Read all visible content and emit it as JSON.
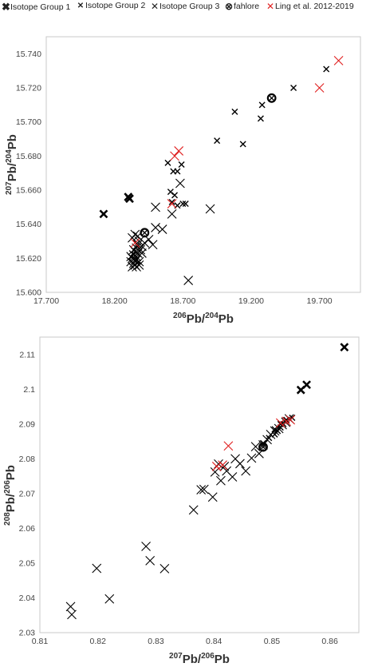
{
  "legend": [
    {
      "label": "Isotope Group 1",
      "marker": "x-bold",
      "color": "#000000"
    },
    {
      "label": "Isotope Group 2",
      "marker": "x-small",
      "color": "#000000"
    },
    {
      "label": "Isotope Group 3",
      "marker": "x-large",
      "color": "#000000"
    },
    {
      "label": "fahlore",
      "marker": "circle-x",
      "color": "#000000"
    },
    {
      "label": "Ling et al. 2012-2019",
      "marker": "x-large",
      "color": "#e02020"
    }
  ],
  "chart_data": [
    {
      "type": "scatter",
      "xlabel": {
        "sup": "206",
        "base": "Pb/",
        "sup2": "204",
        "base2": "Pb"
      },
      "ylabel": {
        "sup": "207",
        "base": "Pb/",
        "sup2": "204",
        "base2": "Pb"
      },
      "xlim": [
        17.7,
        20.0
      ],
      "ylim": [
        15.6,
        15.75
      ],
      "xticks": [
        "17.700",
        "18.200",
        "18.700",
        "19.200",
        "19.700"
      ],
      "xtick_values": [
        17.7,
        18.2,
        18.7,
        19.2,
        19.7
      ],
      "yticks": [
        "15.600",
        "15.620",
        "15.640",
        "15.660",
        "15.680",
        "15.700",
        "15.720",
        "15.740"
      ],
      "ytick_values": [
        15.6,
        15.62,
        15.64,
        15.66,
        15.68,
        15.7,
        15.72,
        15.74
      ],
      "grid": false,
      "series": [
        {
          "name": "Isotope Group 1",
          "marker": "x-bold",
          "color": "#000000",
          "x": [
            18.12,
            18.3,
            18.31
          ],
          "y": [
            15.646,
            15.656,
            15.655
          ]
        },
        {
          "name": "Isotope Group 2",
          "marker": "x-small",
          "color": "#000000",
          "x": [
            18.59,
            18.61,
            18.63,
            18.66,
            18.69,
            18.7,
            18.62,
            18.64,
            18.66,
            18.72,
            18.95,
            19.08,
            19.14,
            19.27,
            19.28,
            19.51,
            19.75
          ],
          "y": [
            15.676,
            15.659,
            15.671,
            15.671,
            15.675,
            15.652,
            15.653,
            15.657,
            15.651,
            15.652,
            15.689,
            15.706,
            15.687,
            15.702,
            15.71,
            15.72,
            15.731
          ]
        },
        {
          "name": "Isotope Group 3",
          "marker": "x-large",
          "color": "#000000",
          "x": [
            18.32,
            18.33,
            18.34,
            18.35,
            18.36,
            18.37,
            18.38,
            18.33,
            18.34,
            18.35,
            18.36,
            18.37,
            18.39,
            18.4,
            18.42,
            18.45,
            18.48,
            18.5,
            18.55,
            18.33,
            18.35,
            18.37,
            18.4,
            18.35,
            18.36,
            18.38,
            18.32,
            18.34,
            18.36,
            18.38,
            18.5,
            18.62,
            18.68,
            18.74,
            18.9
          ],
          "y": [
            15.618,
            15.62,
            15.622,
            15.624,
            15.626,
            15.628,
            15.63,
            15.615,
            15.617,
            15.619,
            15.621,
            15.623,
            15.625,
            15.627,
            15.629,
            15.631,
            15.628,
            15.638,
            15.637,
            15.632,
            15.634,
            15.633,
            15.623,
            15.616,
            15.615,
            15.618,
            15.621,
            15.625,
            15.619,
            15.616,
            15.65,
            15.646,
            15.664,
            15.607,
            15.649
          ]
        },
        {
          "name": "fahlore",
          "marker": "circle-x",
          "color": "#000000",
          "x": [
            18.42,
            19.35
          ],
          "y": [
            15.635,
            15.714
          ]
        },
        {
          "name": "Ling et al. 2012-2019",
          "marker": "x-large",
          "color": "#e02020",
          "x": [
            18.35,
            18.62,
            18.64,
            18.67,
            19.7,
            19.84
          ],
          "y": [
            15.629,
            15.652,
            15.68,
            15.683,
            15.72,
            15.736
          ]
        }
      ]
    },
    {
      "type": "scatter",
      "xlabel": {
        "sup": "207",
        "base": "Pb/",
        "sup2": "206",
        "base2": "Pb"
      },
      "ylabel": {
        "sup": "208",
        "base": "Pb/",
        "sup2": "206",
        "base2": "Pb"
      },
      "xlim": [
        0.81,
        0.865
      ],
      "ylim": [
        2.03,
        2.115
      ],
      "xticks": [
        "0.81",
        "0.82",
        "0.83",
        "0.84",
        "0.85",
        "0.86"
      ],
      "xtick_values": [
        0.81,
        0.82,
        0.83,
        0.84,
        0.85,
        0.86
      ],
      "yticks": [
        "2.03",
        "2.04",
        "2.05",
        "2.06",
        "2.07",
        "2.08",
        "2.09",
        "2.1",
        "2.11"
      ],
      "ytick_values": [
        2.03,
        2.04,
        2.05,
        2.06,
        2.07,
        2.08,
        2.09,
        2.1,
        2.11
      ],
      "grid": false,
      "series": [
        {
          "name": "Isotope Group 1",
          "marker": "x-bold",
          "color": "#000000",
          "x": [
            0.855,
            0.856,
            0.8625
          ],
          "y": [
            2.0998,
            2.1013,
            2.1121
          ]
        },
        {
          "name": "Isotope Group 2",
          "marker": "x-small",
          "color": "#000000",
          "x": [
            0.8485,
            0.8495,
            0.8505,
            0.851,
            0.8515,
            0.852,
            0.8525,
            0.853,
            0.8535,
            0.8505,
            0.8515,
            0.8525
          ],
          "y": [
            2.0845,
            2.086,
            2.087,
            2.088,
            2.089,
            2.09,
            2.091,
            2.0915,
            2.0918,
            2.0885,
            2.09,
            2.0912
          ]
        },
        {
          "name": "Isotope Group 3",
          "marker": "x-large",
          "color": "#000000",
          "x": [
            0.8153,
            0.8155,
            0.8198,
            0.822,
            0.8283,
            0.829,
            0.8315,
            0.8365,
            0.8378,
            0.8383,
            0.8398,
            0.8402,
            0.8412,
            0.8418,
            0.8432,
            0.8437,
            0.8455,
            0.8465,
            0.8472,
            0.8478,
            0.8485,
            0.8492,
            0.8498,
            0.8505,
            0.8512,
            0.8518,
            0.8524,
            0.853,
            0.8408,
            0.8422,
            0.8445
          ],
          "y": [
            2.0375,
            2.0352,
            2.0485,
            2.0397,
            2.0548,
            2.0507,
            2.0484,
            2.0653,
            2.0711,
            2.0712,
            2.069,
            2.0762,
            2.0737,
            2.0778,
            2.0748,
            2.08,
            2.0765,
            2.0802,
            2.0835,
            2.0815,
            2.084,
            2.0855,
            2.087,
            2.088,
            2.0887,
            2.0898,
            2.0905,
            2.0915,
            2.0785,
            2.0765,
            2.0786
          ]
        },
        {
          "name": "fahlore",
          "marker": "circle-x",
          "color": "#000000",
          "x": [
            0.8485
          ],
          "y": [
            2.0834
          ]
        },
        {
          "name": "Ling et al. 2012-2019",
          "marker": "x-large",
          "color": "#e02020",
          "x": [
            0.8405,
            0.8415,
            0.8425,
            0.8515,
            0.8525,
            0.8532
          ],
          "y": [
            2.0778,
            2.0782,
            2.0837,
            2.0903,
            2.0908,
            2.0912
          ]
        }
      ]
    }
  ]
}
